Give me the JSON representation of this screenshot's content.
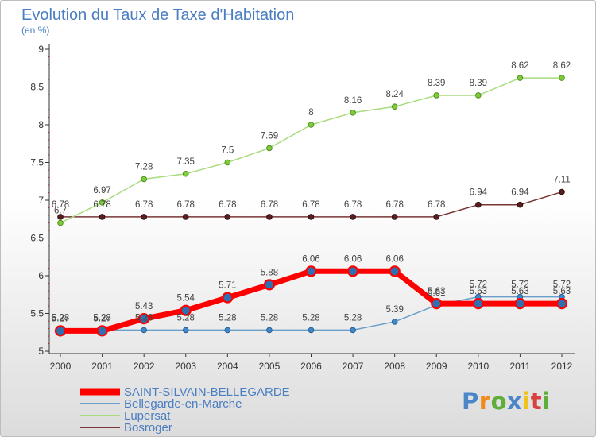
{
  "chart_data": {
    "type": "line",
    "title": "Evolution du Taux de Taxe d'Habitation",
    "subtitle": "(en %)",
    "x": [
      "2000",
      "2001",
      "2002",
      "2003",
      "2004",
      "2005",
      "2006",
      "2007",
      "2008",
      "2009",
      "2010",
      "2011",
      "2012"
    ],
    "ylim": [
      5,
      9
    ],
    "yticks": [
      "5",
      "5.5",
      "6",
      "6.5",
      "7",
      "7.5",
      "8",
      "8.5",
      "9"
    ],
    "grid": false,
    "legend_position": "bottom-left",
    "series": [
      {
        "name": "SAINT-SILVAIN-BELLEGARDE",
        "color": "#ff0000",
        "values": [
          5.27,
          5.27,
          5.43,
          5.54,
          5.71,
          5.88,
          6.06,
          6.06,
          6.06,
          5.63,
          5.63,
          5.63,
          5.63
        ]
      },
      {
        "name": "Bellegarde-en-Marche",
        "color": "#6a9fc9",
        "values": [
          5.28,
          5.28,
          5.28,
          5.28,
          5.28,
          5.28,
          5.28,
          5.28,
          5.39,
          5.61,
          5.72,
          5.72,
          5.72
        ]
      },
      {
        "name": "Lupersat",
        "color": "#a8dc7e",
        "values": [
          6.7,
          6.97,
          7.28,
          7.35,
          7.5,
          7.69,
          8,
          8.16,
          8.24,
          8.39,
          8.39,
          8.62,
          8.62
        ]
      },
      {
        "name": "Bosroger",
        "color": "#7a3535",
        "values": [
          6.78,
          6.78,
          6.78,
          6.78,
          6.78,
          6.78,
          6.78,
          6.78,
          6.78,
          6.78,
          6.94,
          6.94,
          7.11
        ]
      }
    ],
    "value_labels": [
      [
        "5.27",
        "5.27",
        "5.43",
        "5.54",
        "5.71",
        "5.88",
        "6.06",
        "6.06",
        "6.06",
        "5.63",
        "5.63",
        "5.63",
        "5.63"
      ],
      [
        "5.28",
        "5.28",
        "5.28",
        "5.28",
        "5.28",
        "5.28",
        "5.28",
        "5.28",
        "5.39",
        "5.61",
        "5.72",
        "5.72",
        "5.72"
      ],
      [
        "6.7",
        "6.97",
        "7.28",
        "7.35",
        "7.5",
        "7.69",
        "8",
        "8.16",
        "8.24",
        "8.39",
        "8.39",
        "8.62",
        "8.62"
      ],
      [
        "6.78",
        "6.78",
        "6.78",
        "6.78",
        "6.78",
        "6.78",
        "6.78",
        "6.78",
        "6.78",
        "6.78",
        "6.94",
        "6.94",
        "7.11"
      ]
    ]
  },
  "logo": {
    "letters": [
      "P",
      "r",
      "o",
      "x",
      "i",
      "t",
      "i"
    ],
    "colors": [
      "#4a86c8",
      "#f08a1c",
      "#5fae3a",
      "#4a86c8",
      "#f0c21c",
      "#d94040",
      "#5fae3a"
    ]
  }
}
